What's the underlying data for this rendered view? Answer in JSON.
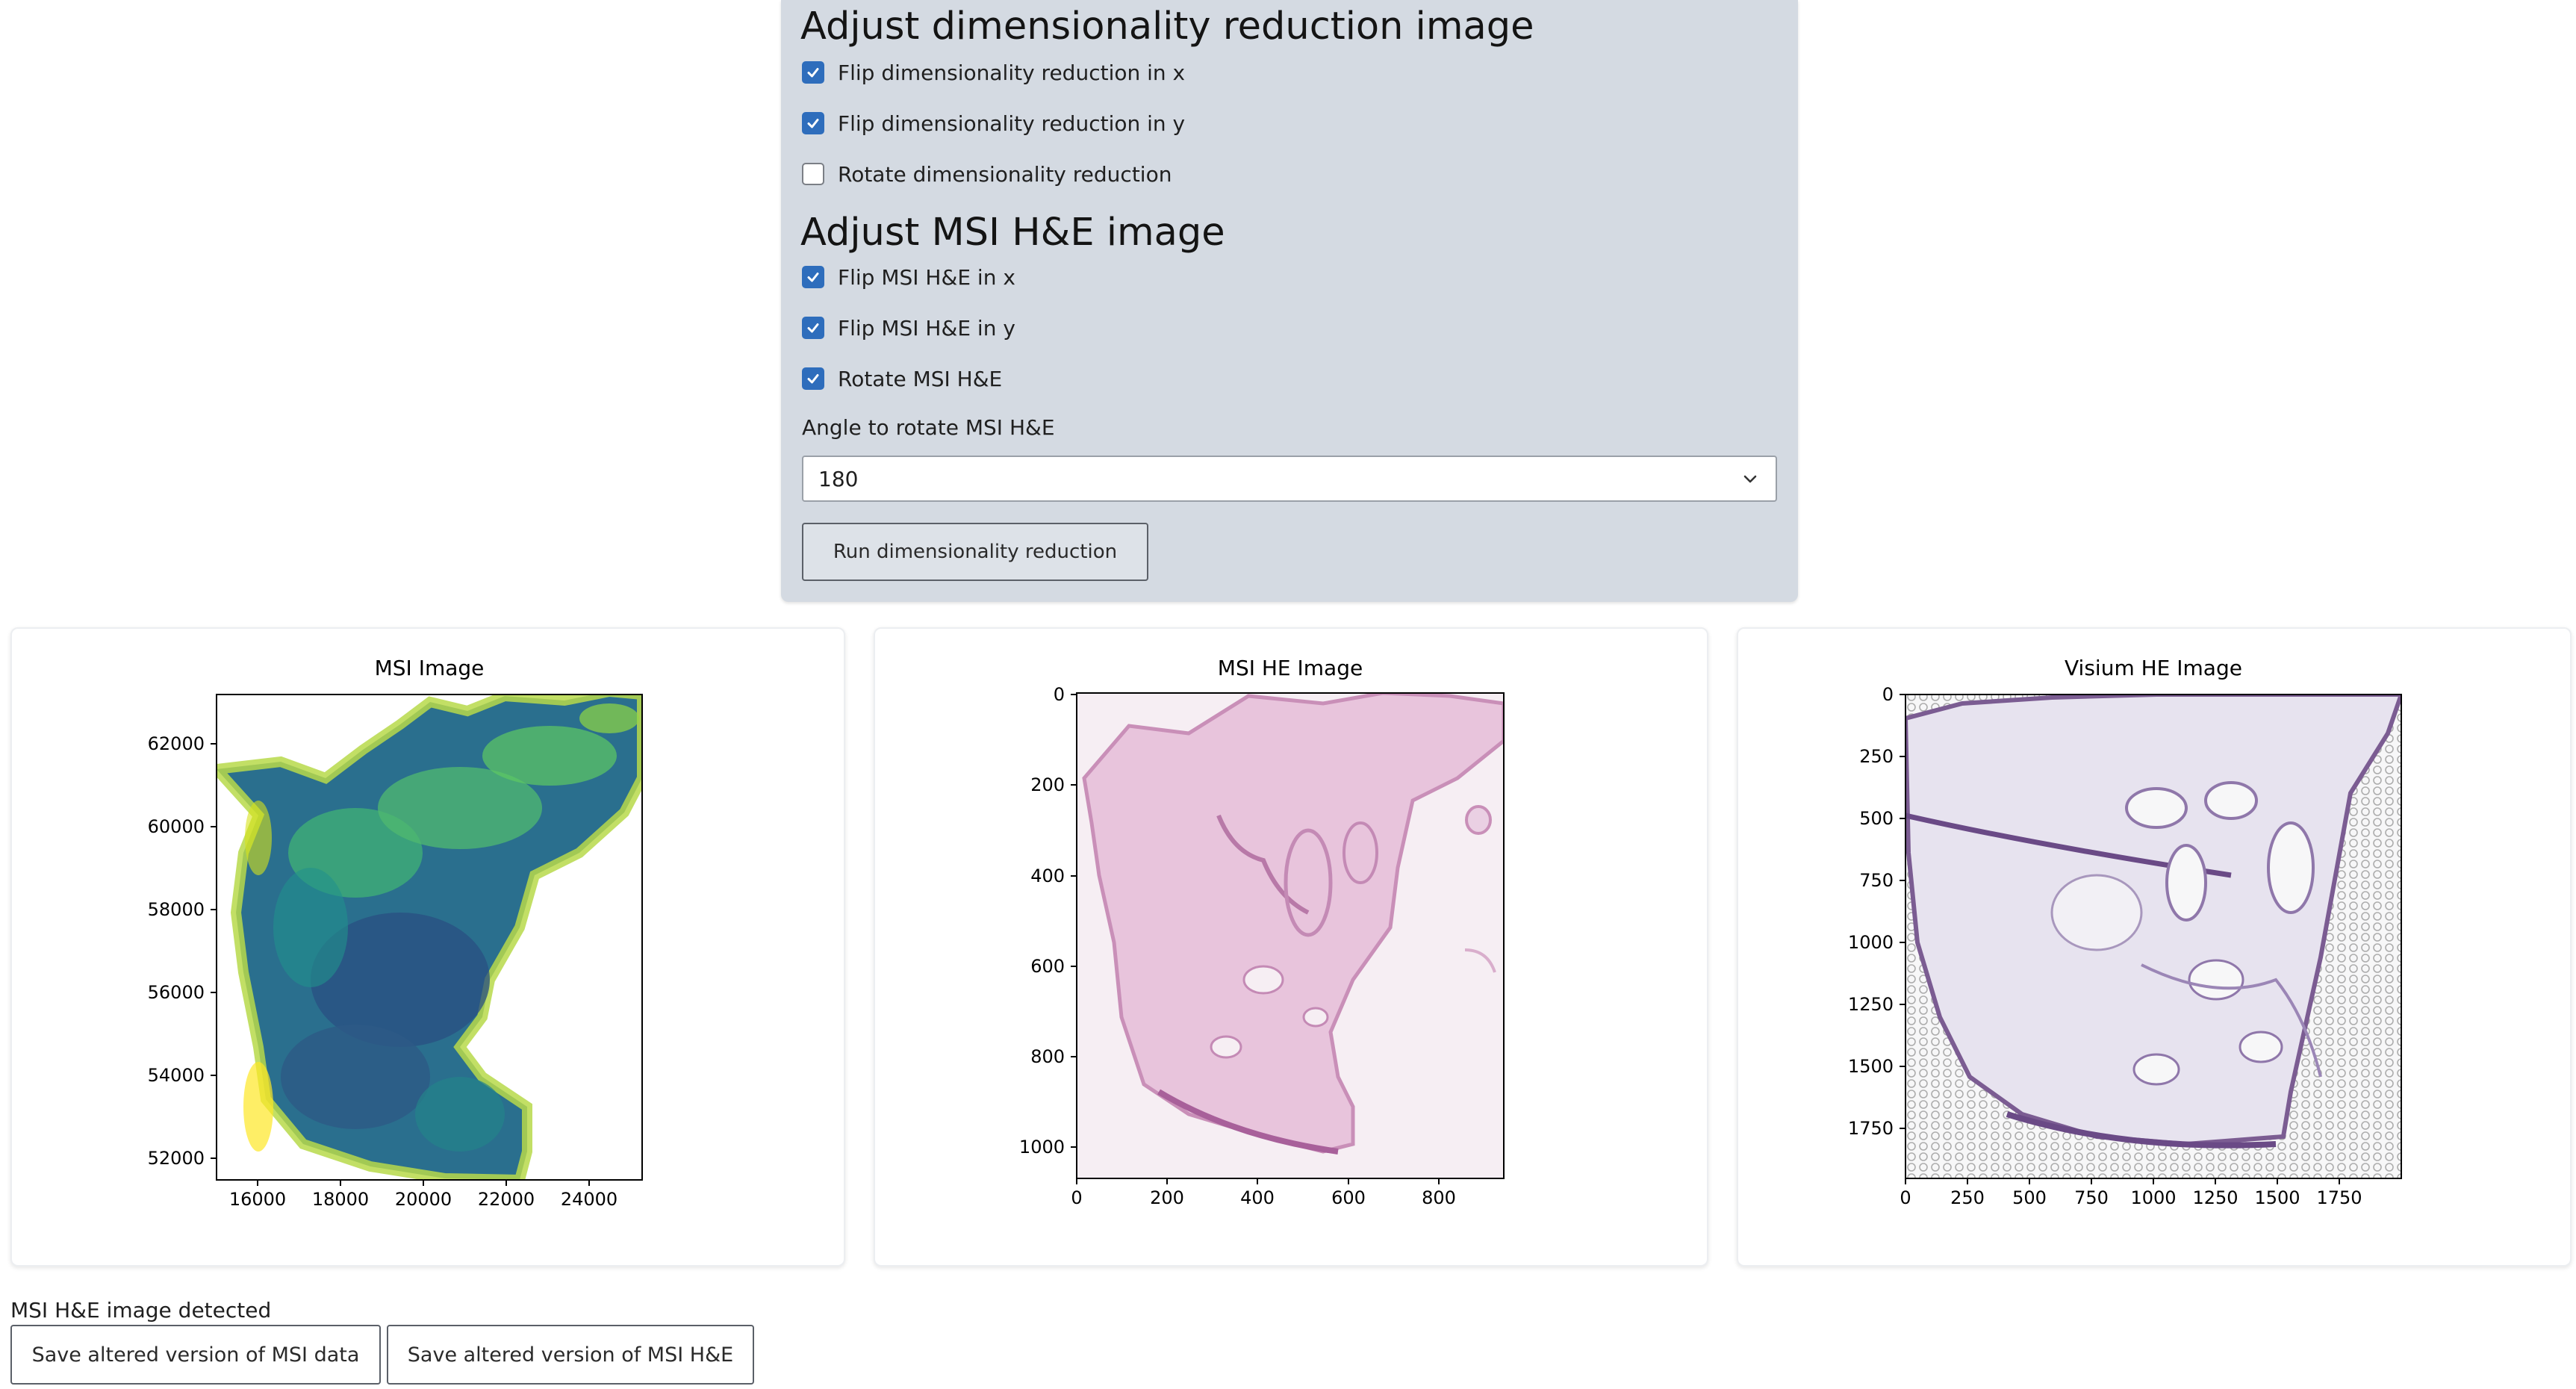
{
  "panel": {
    "dimred_heading": "Adjust dimensionality reduction image",
    "dimred_options": [
      {
        "label": "Flip dimensionality reduction in x",
        "checked": true
      },
      {
        "label": "Flip dimensionality reduction in y",
        "checked": true
      },
      {
        "label": "Rotate dimensionality reduction",
        "checked": false
      }
    ],
    "he_heading": "Adjust MSI H&E image",
    "he_options": [
      {
        "label": "Flip MSI H&E in x",
        "checked": true
      },
      {
        "label": "Flip MSI H&E in y",
        "checked": true
      },
      {
        "label": "Rotate MSI H&E",
        "checked": true
      }
    ],
    "angle_label": "Angle to rotate MSI H&E",
    "angle_value": "180",
    "run_button": "Run dimensionality reduction"
  },
  "images": [
    {
      "title": "MSI Image",
      "x_ticks": [
        "16000",
        "18000",
        "20000",
        "22000",
        "24000"
      ],
      "y_ticks": [
        "62000",
        "60000",
        "58000",
        "56000",
        "54000",
        "52000"
      ],
      "colormap": [
        "#3b528b",
        "#21918c",
        "#5ec962",
        "#fde725"
      ]
    },
    {
      "title": "MSI HE Image",
      "x_ticks": [
        "0",
        "200",
        "400",
        "600",
        "800"
      ],
      "y_ticks": [
        "0",
        "200",
        "400",
        "600",
        "800",
        "1000"
      ],
      "tissue_color": "#d9a8cf"
    },
    {
      "title": "Visium HE Image",
      "x_ticks": [
        "0",
        "250",
        "500",
        "750",
        "1000",
        "1250",
        "1500",
        "1750"
      ],
      "y_ticks": [
        "0",
        "250",
        "500",
        "750",
        "1000",
        "1250",
        "1500",
        "1750"
      ],
      "tissue_color": "#8d7fb0"
    }
  ],
  "footer": {
    "status": "MSI H&E image detected",
    "save_msi_button": "Save altered version of MSI data",
    "save_he_button": "Save altered version of MSI H&E"
  }
}
